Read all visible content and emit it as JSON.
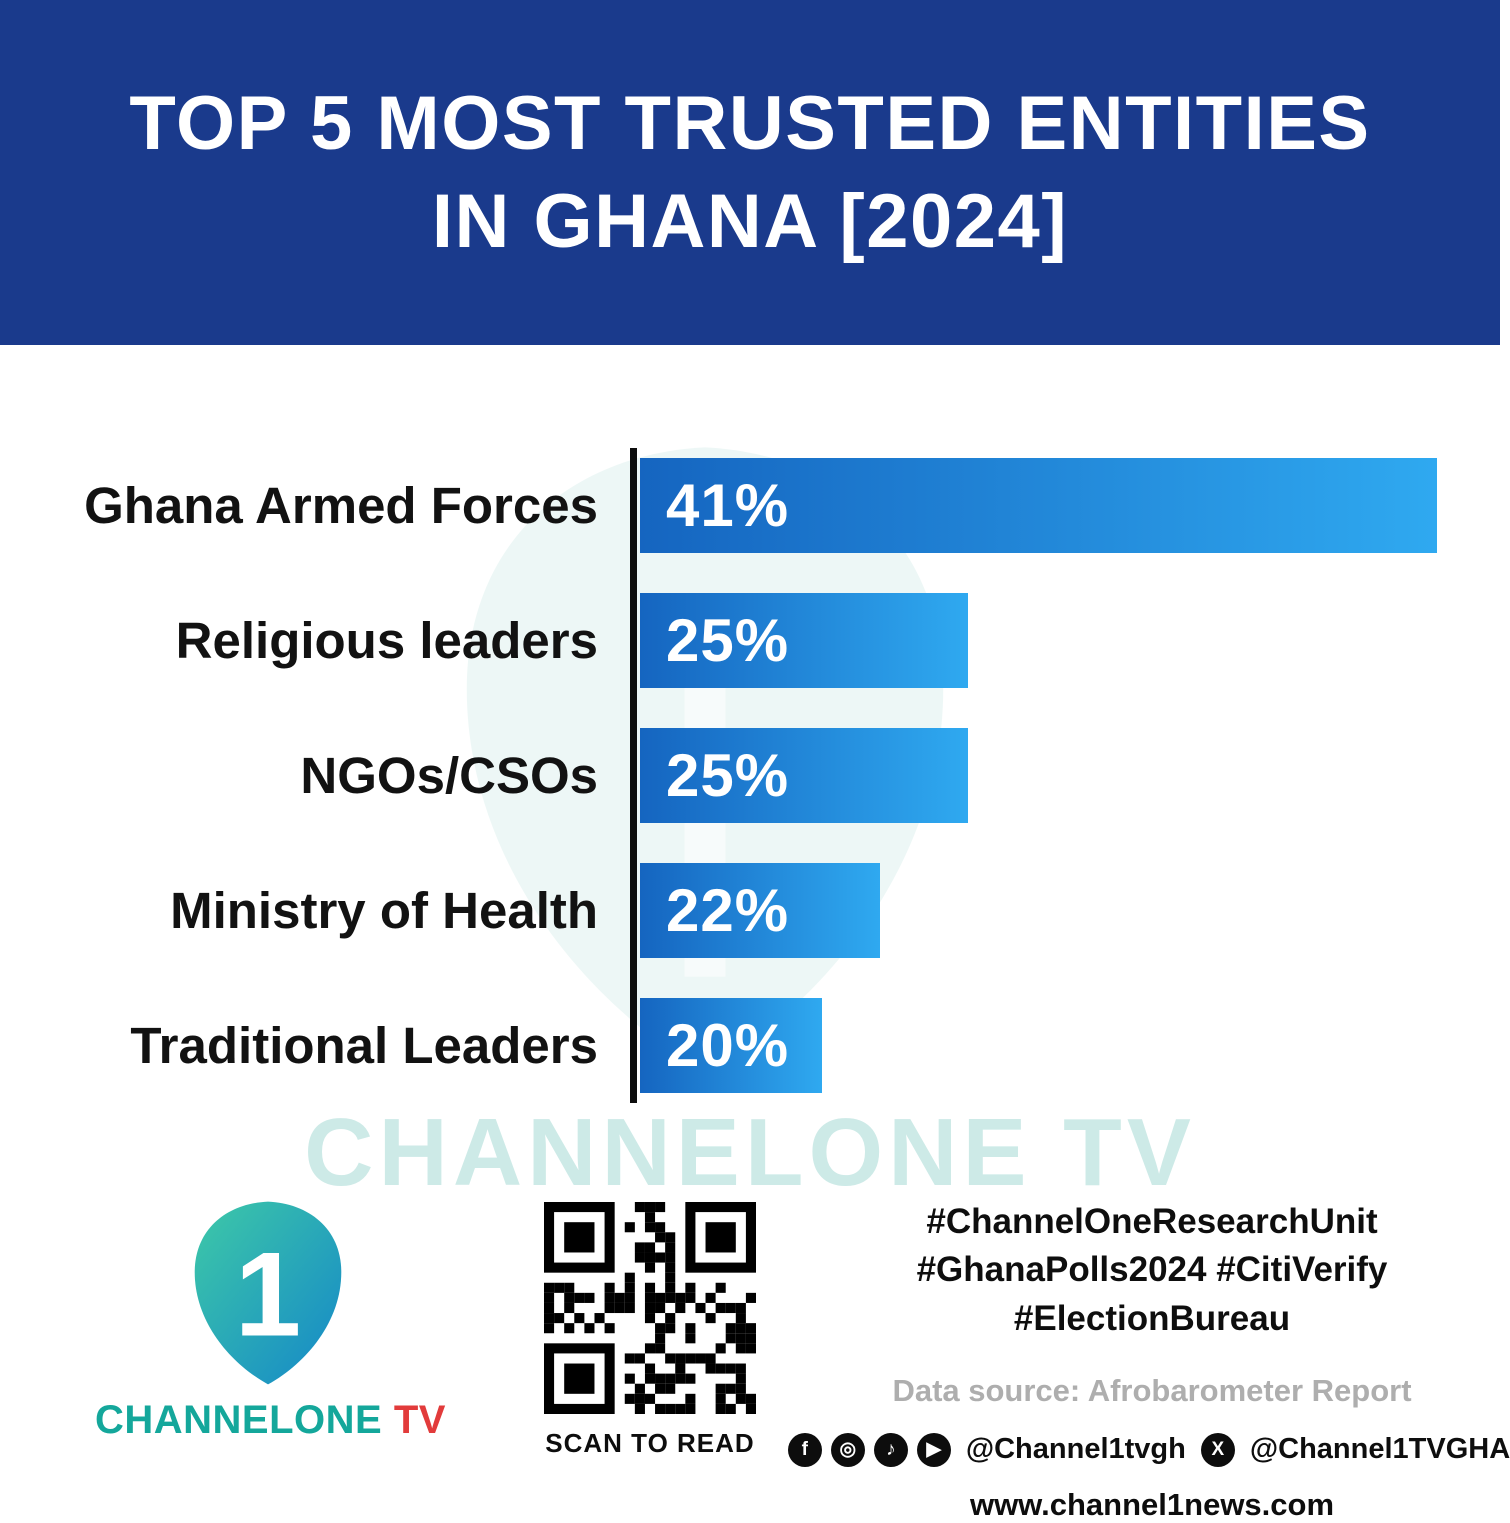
{
  "header": {
    "title_line1": "TOP 5 MOST TRUSTED ENTITIES",
    "title_line2": "IN GHANA [2024]",
    "bg_color": "#1a3a8c"
  },
  "chart_data": {
    "type": "bar",
    "orientation": "horizontal",
    "title": "Top 5 most trusted entities in Ghana [2024]",
    "categories": [
      "Ghana Armed Forces",
      "Religious leaders",
      "NGOs/CSOs",
      "Ministry of Health",
      "Traditional Leaders"
    ],
    "values": [
      41,
      25,
      25,
      22,
      20
    ],
    "value_labels": [
      "41%",
      "25%",
      "25%",
      "22%",
      "20%"
    ],
    "display_width_pct": [
      100,
      41.2,
      41.2,
      30.1,
      22.8
    ],
    "bar_gradient_start": "#1565c0",
    "bar_gradient_end": "#2fa9f0",
    "axis_color": "#0d0d0d",
    "grid": false,
    "legend": false,
    "xlabel": "",
    "ylabel": ""
  },
  "watermark": {
    "text": "CHANNELONE TV",
    "color": "#cdeae7"
  },
  "footer": {
    "logo": {
      "one_glyph": "1",
      "wordmark_main": "CHANNELONE",
      "wordmark_tv": " TV",
      "teal": "#14a79b",
      "red": "#e23b3b"
    },
    "qr_caption": "SCAN TO READ",
    "hashtags": [
      "#ChannelOneResearchUnit",
      "#GhanaPolls2024 #CitiVerify",
      "#ElectionBureau"
    ],
    "data_source": "Data source: Afrobarometer Report",
    "social": {
      "handle1": "@Channel1tvgh",
      "handle2": "@Channel1TVGHA",
      "icons": [
        "facebook",
        "instagram",
        "tiktok",
        "youtube",
        "x"
      ]
    },
    "website": "www.channel1news.com"
  }
}
